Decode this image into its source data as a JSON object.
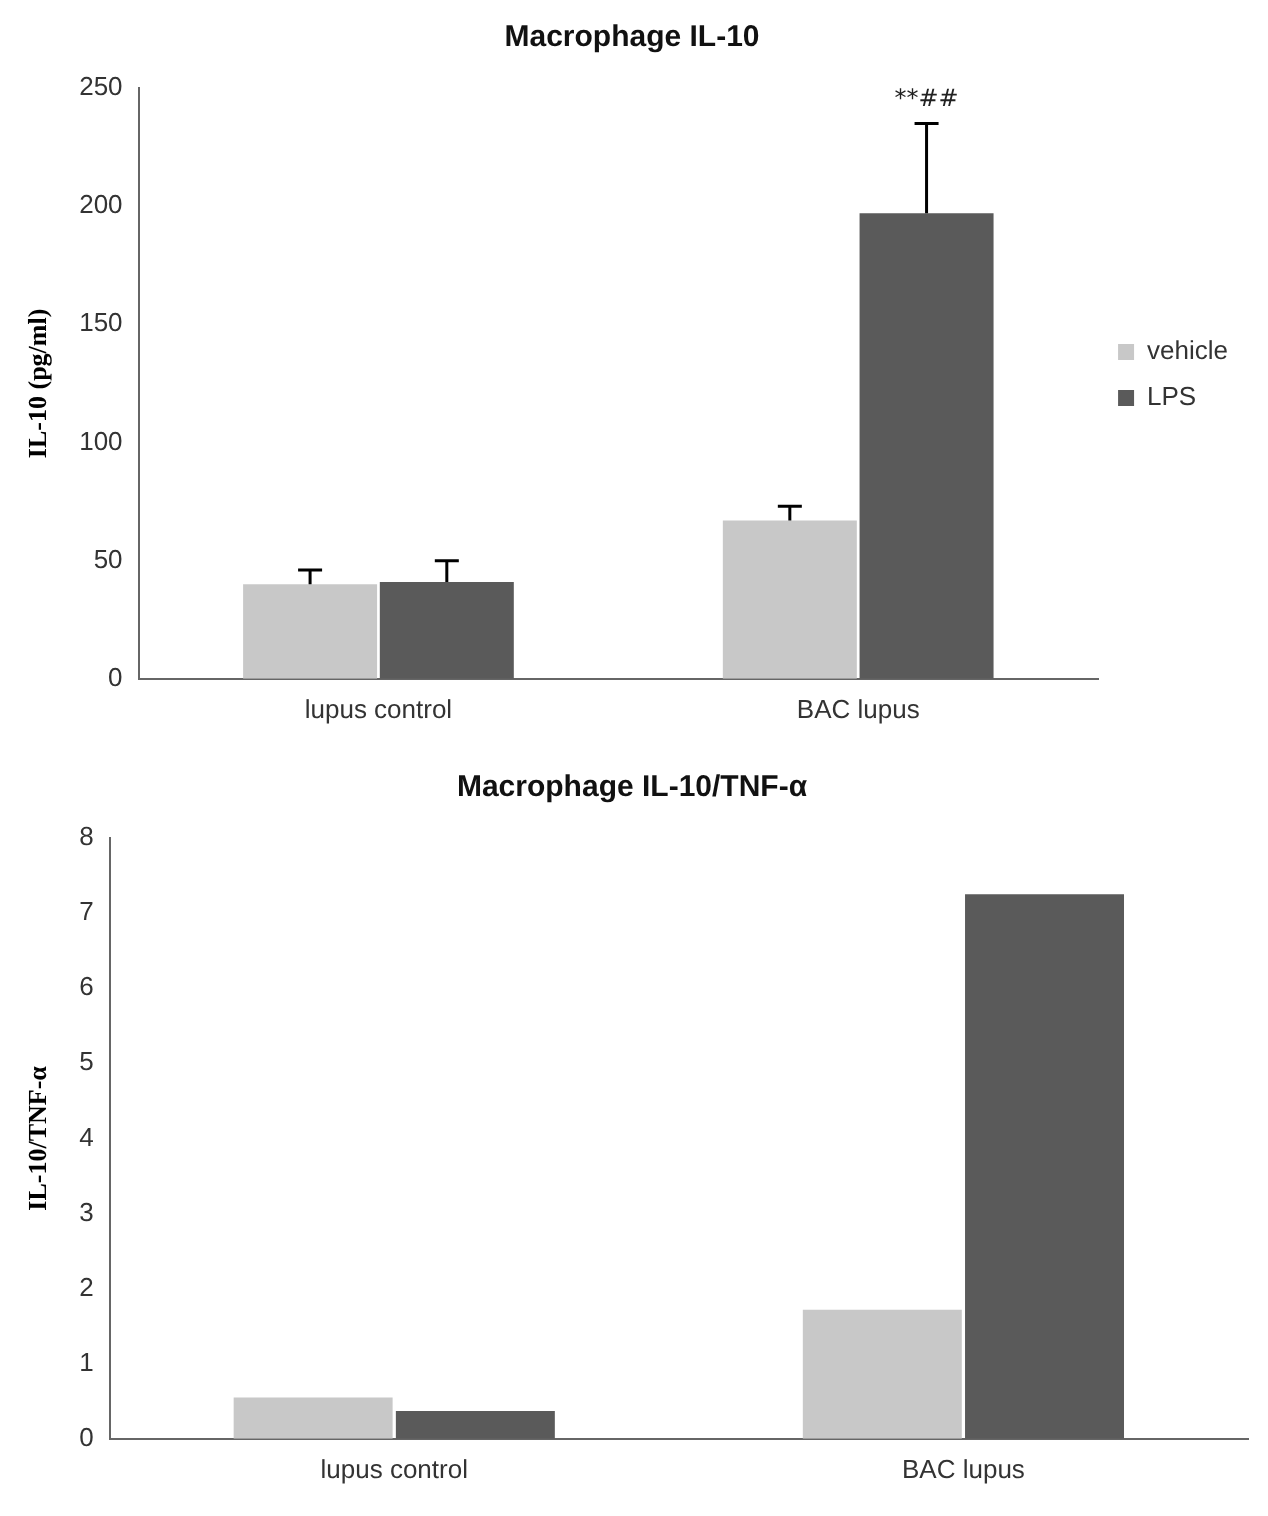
{
  "chart_data": [
    {
      "type": "bar",
      "title": "Macrophage IL-10",
      "ylabel": "IL-10 (pg/ml)",
      "categories": [
        "lupus control",
        "BAC lupus"
      ],
      "series": [
        {
          "name": "vehicle",
          "color": "#c8c8c8",
          "values": [
            40,
            67
          ],
          "errors": [
            [
              40,
              46
            ],
            [
              67,
              73
            ]
          ]
        },
        {
          "name": "LPS",
          "color": "#5a5a5a",
          "values": [
            41,
            197
          ],
          "errors": [
            [
              41,
              50
            ],
            [
              197,
              235
            ]
          ]
        }
      ],
      "ylim": [
        0,
        250
      ],
      "yticks": [
        0,
        50,
        100,
        150,
        200,
        250
      ],
      "grid": false,
      "legend": "right",
      "annotations": [
        "**##"
      ]
    },
    {
      "type": "bar",
      "title": "Macrophage IL-10/TNF-α",
      "ylabel": "IL-10/TNF-α",
      "categories": [
        "lupus control",
        "BAC lupus"
      ],
      "series": [
        {
          "color": "#c8c8c8",
          "values": [
            0.55,
            1.72
          ]
        },
        {
          "color": "#5a5a5a",
          "values": [
            0.37,
            7.25
          ]
        }
      ],
      "ylim": [
        0,
        8
      ],
      "yticks": [
        0,
        1,
        2,
        3,
        4,
        5,
        6,
        7,
        8
      ],
      "grid": false
    }
  ]
}
